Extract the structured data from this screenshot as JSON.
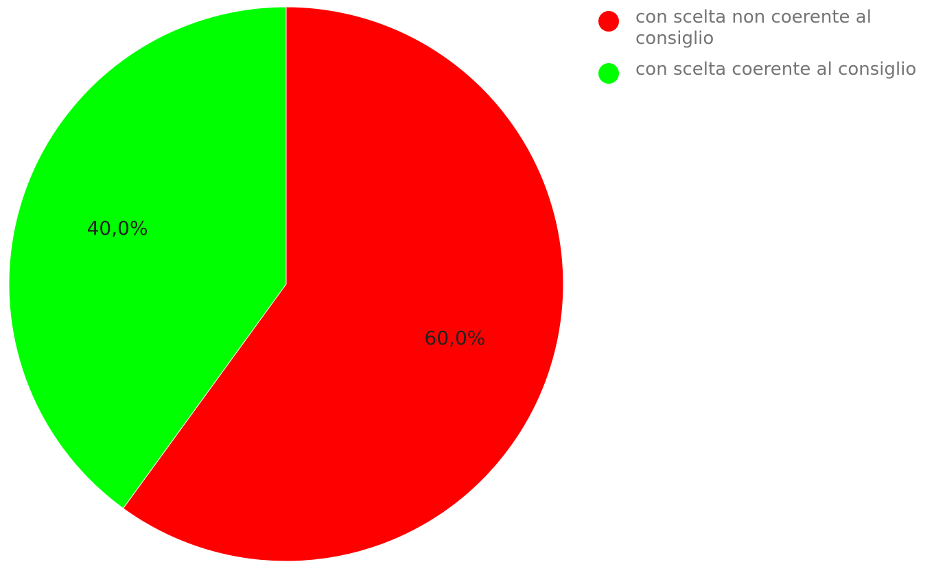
{
  "chart_data": {
    "type": "pie",
    "slices": [
      {
        "label": "con scelta non coerente al consiglio",
        "value": 60.0,
        "value_label": "60,0%",
        "color": "#ff0000"
      },
      {
        "label": "con scelta coerente al consiglio",
        "value": 40.0,
        "value_label": "40,0%",
        "color": "#00ff00"
      }
    ],
    "legend_position": "top-right",
    "start_angle": "12 o'clock",
    "direction": "clockwise"
  }
}
